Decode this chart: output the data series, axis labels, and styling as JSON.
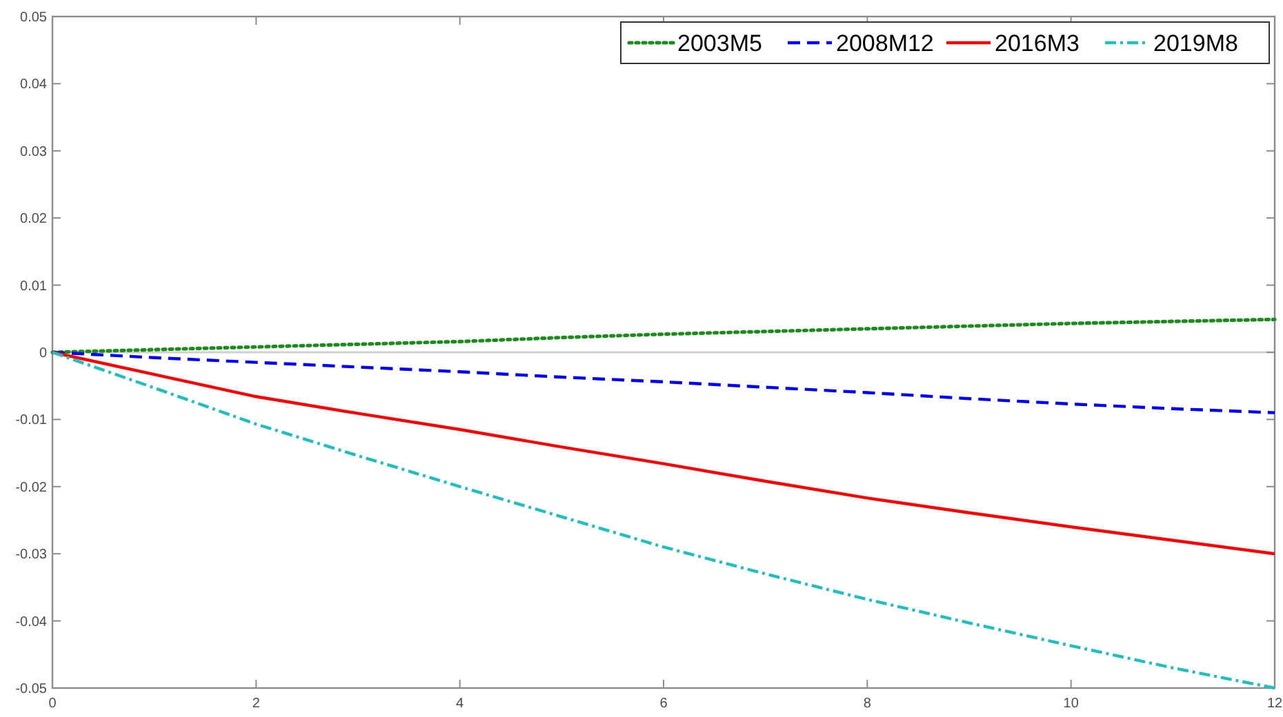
{
  "chart_data": {
    "type": "line",
    "x": [
      0,
      1,
      2,
      3,
      4,
      5,
      6,
      7,
      8,
      9,
      10,
      11,
      12
    ],
    "series": [
      {
        "name": "2003M5",
        "color": "#1a8c1a",
        "line_style": "dotted",
        "values": [
          0,
          0.0004,
          0.0008,
          0.0012,
          0.0016,
          0.0022,
          0.0027,
          0.0031,
          0.0035,
          0.0039,
          0.0043,
          0.0046,
          0.0049
        ]
      },
      {
        "name": "2008M12",
        "color": "#0000ff",
        "line_style": "dashed",
        "values": [
          0,
          -0.0008,
          -0.0015,
          -0.0022,
          -0.0029,
          -0.0037,
          -0.0044,
          -0.0052,
          -0.006,
          -0.0069,
          -0.0077,
          -0.0084,
          -0.009
        ]
      },
      {
        "name": "2016M3",
        "color": "#ff0000",
        "line_style": "solid",
        "values": [
          0,
          -0.0033,
          -0.0066,
          -0.0091,
          -0.0115,
          -0.0141,
          -0.0166,
          -0.0192,
          -0.0217,
          -0.0239,
          -0.026,
          -0.028,
          -0.03
        ]
      },
      {
        "name": "2019M8",
        "color": "#1fbfbf",
        "line_style": "dashdot",
        "values": [
          0,
          -0.0053,
          -0.0107,
          -0.0154,
          -0.02,
          -0.0245,
          -0.029,
          -0.033,
          -0.0368,
          -0.0403,
          -0.0437,
          -0.047,
          -0.05
        ]
      }
    ],
    "xlim": [
      0,
      12
    ],
    "xticks": [
      0,
      2,
      4,
      6,
      8,
      10,
      12
    ],
    "ylim": [
      -0.05,
      0.05
    ],
    "yticks": [
      -0.05,
      -0.04,
      -0.03,
      -0.02,
      -0.01,
      0,
      0.01,
      0.02,
      0.03,
      0.04,
      0.05
    ],
    "ref_lines": [
      {
        "axis": "y",
        "value": 0,
        "color": "#d0d0d0"
      }
    ],
    "legend": "top right",
    "grid": false,
    "marker": "none"
  }
}
